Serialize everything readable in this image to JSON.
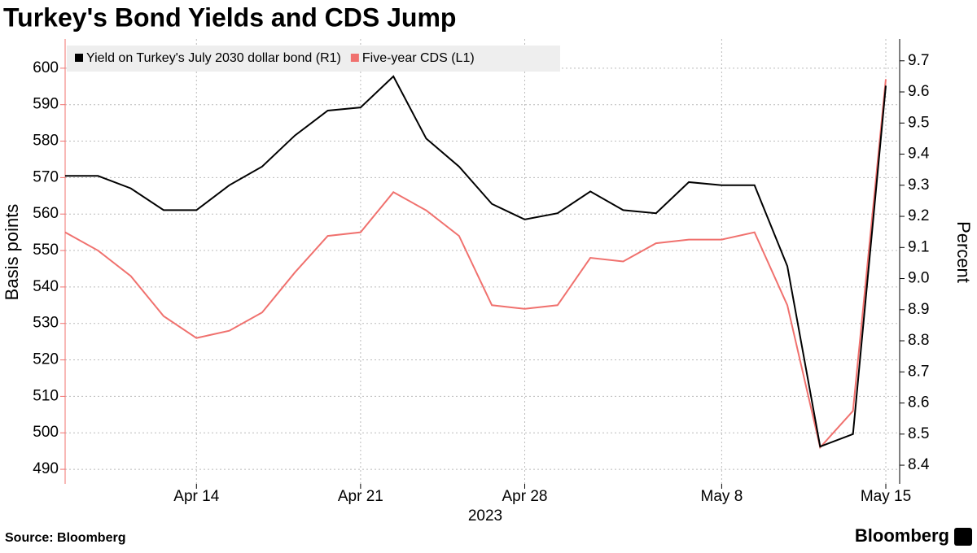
{
  "chart_data": {
    "type": "line",
    "title": "Turkey's Bond Yields and CDS Jump",
    "source": "Source: Bloomberg",
    "brand": "Bloomberg",
    "ylabel": "Basis points",
    "y2label": "Percent",
    "x_label": "2023",
    "x": [
      "2023-04-10",
      "2023-04-11",
      "2023-04-12",
      "2023-04-13",
      "2023-04-14",
      "2023-04-17",
      "2023-04-18",
      "2023-04-19",
      "2023-04-20",
      "2023-04-21",
      "2023-04-24",
      "2023-04-25",
      "2023-04-26",
      "2023-04-27",
      "2023-04-28",
      "2023-05-01",
      "2023-05-02",
      "2023-05-03",
      "2023-05-04",
      "2023-05-05",
      "2023-05-08",
      "2023-05-09",
      "2023-05-10",
      "2023-05-11",
      "2023-05-12",
      "2023-05-15"
    ],
    "xticks": [
      {
        "value": "2023-04-14",
        "label": "Apr 14"
      },
      {
        "value": "2023-04-21",
        "label": "Apr 21"
      },
      {
        "value": "2023-04-28",
        "label": "Apr 28"
      },
      {
        "value": "2023-05-08",
        "label": "May 8"
      },
      {
        "value": "2023-05-15",
        "label": "May 15"
      }
    ],
    "series": [
      {
        "name": "Yield on Turkey's July 2030 dollar bond (R1)",
        "color": "#000000",
        "axis": "y2",
        "values": [
          9.33,
          9.33,
          9.29,
          9.22,
          9.22,
          9.3,
          9.36,
          9.46,
          9.54,
          9.55,
          9.65,
          9.45,
          9.36,
          9.24,
          9.19,
          9.21,
          9.28,
          9.22,
          9.21,
          9.31,
          9.3,
          9.3,
          9.04,
          8.46,
          8.5,
          9.62
        ]
      },
      {
        "name": "Five-year CDS (L1)",
        "color": "#f0716e",
        "axis": "y",
        "values": [
          555,
          550,
          543,
          532,
          526,
          528,
          533,
          544,
          554,
          555,
          566,
          561,
          554,
          535,
          534,
          535,
          548,
          547,
          552,
          553,
          553,
          555,
          535,
          496,
          506,
          597
        ]
      }
    ],
    "ylim": [
      486,
      608
    ],
    "yticks": [
      490,
      500,
      510,
      520,
      530,
      540,
      550,
      560,
      570,
      580,
      590,
      600
    ],
    "y2lim": [
      8.34,
      9.77
    ],
    "y2ticks": [
      8.4,
      8.5,
      8.6,
      8.7,
      8.8,
      8.9,
      {
        "value": 9,
        "label": "9.0"
      },
      9.1,
      9.2,
      9.3,
      9.4,
      9.5,
      9.6,
      9.7
    ],
    "grid": true,
    "legend": "top-left"
  }
}
